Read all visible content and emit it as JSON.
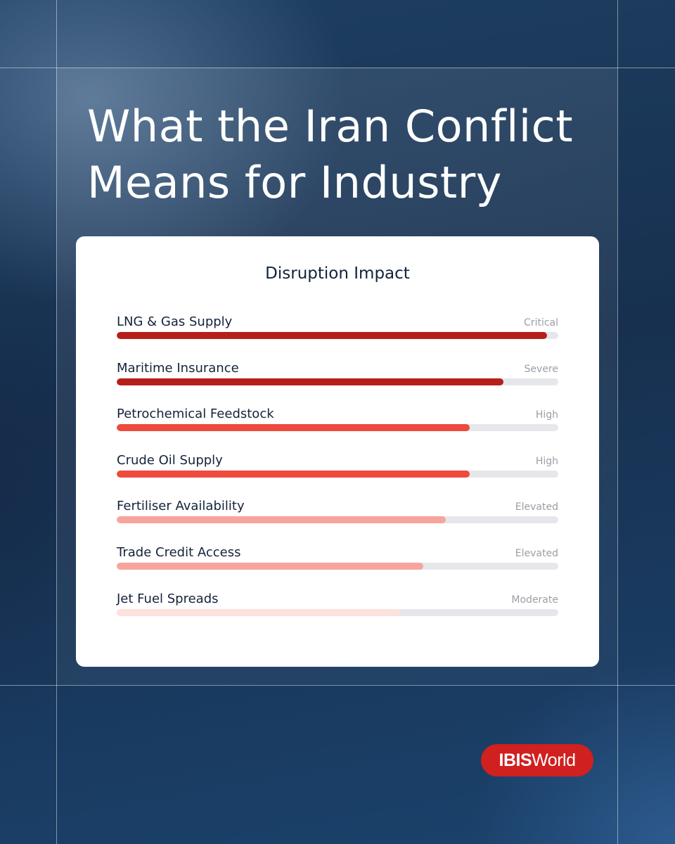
{
  "title_lines": [
    "What the Iran Conflict",
    "Means for Industry"
  ],
  "card": {
    "title": "Disruption Impact"
  },
  "chart_data": {
    "type": "bar",
    "orientation": "horizontal",
    "title": "Disruption Impact",
    "xlim": [
      0,
      1
    ],
    "categories": [
      "LNG & Gas Supply",
      "Maritime Insurance",
      "Petrochemical Feedstock",
      "Crude Oil Supply",
      "Fertiliser Availability",
      "Trade Credit Access",
      "Jet Fuel Spreads"
    ],
    "levels": [
      "Critical",
      "Severe",
      "High",
      "High",
      "Elevated",
      "Elevated",
      "Moderate"
    ],
    "values": [
      0.975,
      0.875,
      0.8,
      0.8,
      0.745,
      0.695,
      0.645
    ],
    "colors": [
      "#b5201a",
      "#b5201a",
      "#ee4a3d",
      "#ee4a3d",
      "#f7a59c",
      "#f7a59c",
      "#fde1dd"
    ]
  },
  "logo": {
    "part1": "IBIS",
    "part2": "World"
  }
}
